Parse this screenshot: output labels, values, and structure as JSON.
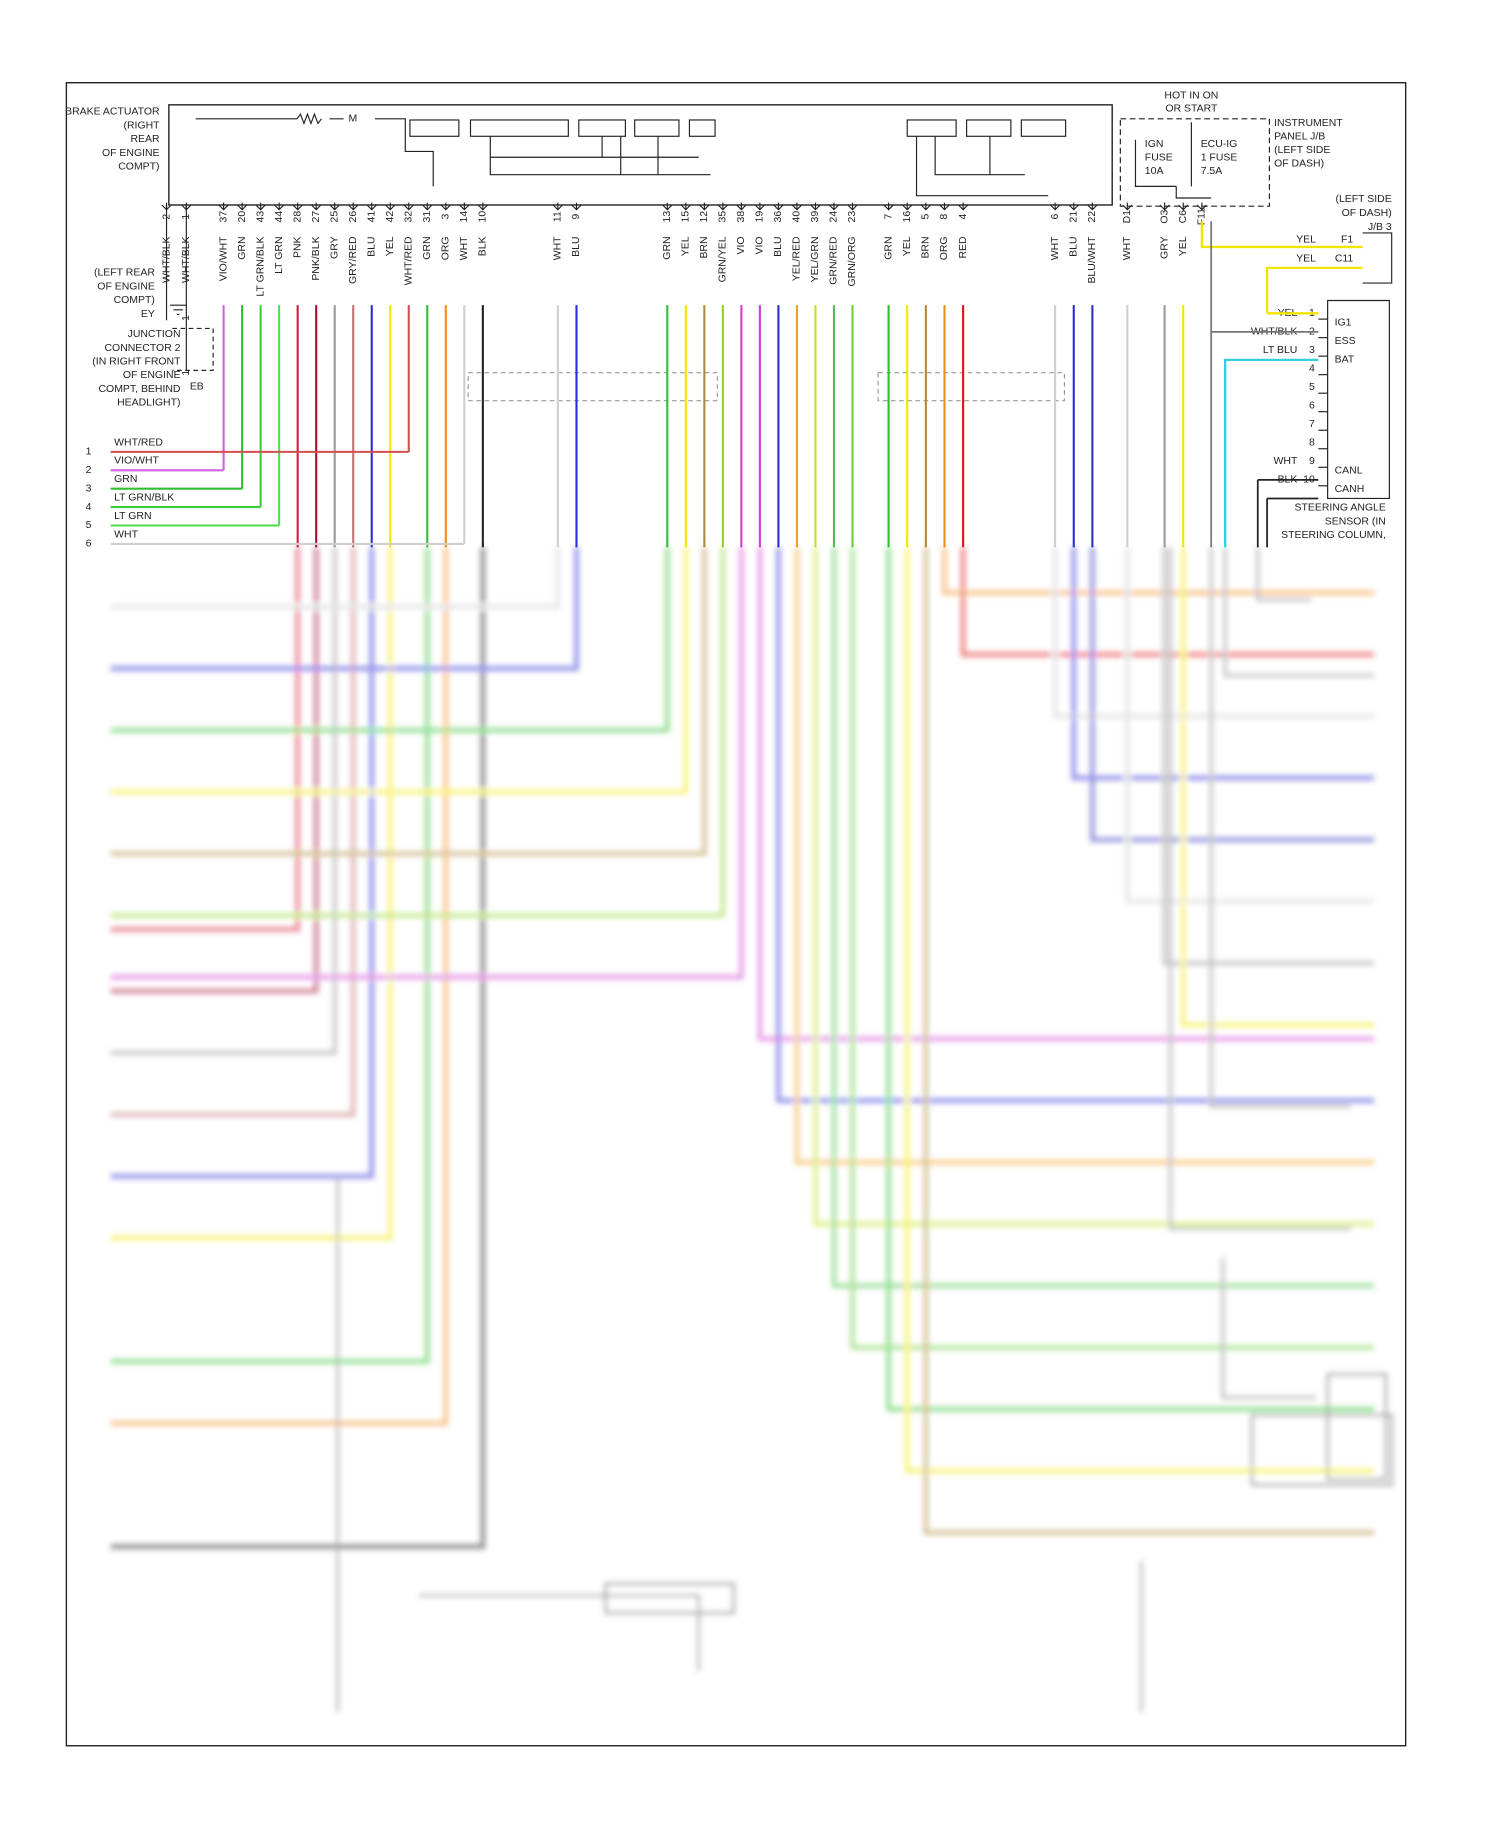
{
  "brake_actuator": {
    "label": [
      "BRAKE ACTUATOR",
      "(RIGHT",
      "REAR",
      "OF ENGINE",
      "COMPT)"
    ],
    "motor": "M"
  },
  "pins": [
    {
      "pin": "2",
      "wire": "WHT/BLK",
      "color": "#777777"
    },
    {
      "pin": "1",
      "wire": "WHT/BLK",
      "color": "#777777"
    },
    {
      "pin": "37",
      "wire": "VIO/WHT",
      "color": "#d060e0"
    },
    {
      "pin": "20",
      "wire": "GRN",
      "color": "#2fbf2f"
    },
    {
      "pin": "43",
      "wire": "LT GRN/BLK",
      "color": "#3acc3a"
    },
    {
      "pin": "44",
      "wire": "LT GRN",
      "color": "#4be04b"
    },
    {
      "pin": "28",
      "wire": "PNK",
      "color": "#d81b3c"
    },
    {
      "pin": "27",
      "wire": "PNK/BLK",
      "color": "#a01030"
    },
    {
      "pin": "25",
      "wire": "GRY",
      "color": "#999999"
    },
    {
      "pin": "26",
      "wire": "GRY/RED",
      "color": "#c07070"
    },
    {
      "pin": "41",
      "wire": "BLU",
      "color": "#2a2ad6"
    },
    {
      "pin": "42",
      "wire": "YEL",
      "color": "#f2e600"
    },
    {
      "pin": "32",
      "wire": "WHT/RED",
      "color": "#d05050"
    },
    {
      "pin": "31",
      "wire": "GRN",
      "color": "#2fbf2f"
    },
    {
      "pin": "3",
      "wire": "ORG",
      "color": "#f08a1a"
    },
    {
      "pin": "14",
      "wire": "WHT",
      "color": "#cfcfcf"
    },
    {
      "pin": "10",
      "wire": "BLK",
      "color": "#222222"
    },
    {
      "pin": "11",
      "wire": "WHT",
      "color": "#cfcfcf"
    },
    {
      "pin": "9",
      "wire": "BLU",
      "color": "#2a2ad6"
    },
    {
      "pin": "13",
      "wire": "GRN",
      "color": "#2fbf2f"
    },
    {
      "pin": "15",
      "wire": "YEL",
      "color": "#f2e600"
    },
    {
      "pin": "12",
      "wire": "BRN",
      "color": "#b08a3a"
    },
    {
      "pin": "35",
      "wire": "GRN/YEL",
      "color": "#8fd22a"
    },
    {
      "pin": "38",
      "wire": "VIO",
      "color": "#d040d0"
    },
    {
      "pin": "19",
      "wire": "VIO",
      "color": "#d040d0"
    },
    {
      "pin": "36",
      "wire": "BLU",
      "color": "#2a2ad6"
    },
    {
      "pin": "40",
      "wire": "YEL/RED",
      "color": "#f0a020"
    },
    {
      "pin": "39",
      "wire": "YEL/GRN",
      "color": "#c0e020"
    },
    {
      "pin": "24",
      "wire": "GRN/RED",
      "color": "#4cc24c"
    },
    {
      "pin": "23",
      "wire": "GRN/ORG",
      "color": "#6ccc3c"
    },
    {
      "pin": "7",
      "wire": "GRN",
      "color": "#2fbf2f"
    },
    {
      "pin": "16",
      "wire": "YEL",
      "color": "#f2e600"
    },
    {
      "pin": "5",
      "wire": "BRN",
      "color": "#b08a3a"
    },
    {
      "pin": "8",
      "wire": "ORG",
      "color": "#f08a1a"
    },
    {
      "pin": "4",
      "wire": "RED",
      "color": "#e01010"
    },
    {
      "pin": "6",
      "wire": "WHT",
      "color": "#cfcfcf"
    },
    {
      "pin": "21",
      "wire": "BLU",
      "color": "#2a2ad6"
    },
    {
      "pin": "22",
      "wire": "BLU/WHT",
      "color": "#3030c0"
    },
    {
      "pin": "D1",
      "wire": "WHT",
      "color": "#cfcfcf"
    },
    {
      "pin": "O3",
      "wire": "GRY",
      "color": "#999999"
    },
    {
      "pin": "C6",
      "wire": "YEL",
      "color": "#f2e600"
    },
    {
      "pin": "F11",
      "color": "#f2e600"
    }
  ],
  "ground_ey": {
    "label": [
      "(LEFT REAR",
      "OF ENGINE",
      "COMPT)",
      "EY"
    ]
  },
  "junction": {
    "label": [
      "JUNCTION",
      "CONNECTOR 2",
      "(IN RIGHT FRONT",
      "OF ENGINE",
      "COMPT, BEHIND",
      "HEADLIGHT)"
    ],
    "id": "EB",
    "pins": [
      "1",
      "1"
    ]
  },
  "harness": [
    {
      "pin": "1",
      "wire": "WHT/RED",
      "color": "#d05050"
    },
    {
      "pin": "2",
      "wire": "VIO/WHT",
      "color": "#d060e0"
    },
    {
      "pin": "3",
      "wire": "GRN",
      "color": "#2fbf2f"
    },
    {
      "pin": "4",
      "wire": "LT GRN/BLK",
      "color": "#3acc3a"
    },
    {
      "pin": "5",
      "wire": "LT GRN",
      "color": "#4be04b"
    },
    {
      "pin": "6",
      "wire": "WHT",
      "color": "#cfcfcf"
    }
  ],
  "power": {
    "hot": [
      "HOT IN ON",
      "OR START"
    ],
    "fuse1": [
      "IGN",
      "FUSE",
      "10A"
    ],
    "fuse2": [
      "ECU-IG",
      "1 FUSE",
      "7.5A"
    ],
    "jb": [
      "INSTRUMENT",
      "PANEL J/B",
      "(LEFT SIDE",
      "OF DASH)"
    ]
  },
  "jb3": {
    "label": [
      "(LEFT SIDE",
      "OF DASH)",
      "J/B 3"
    ],
    "pins": [
      {
        "pin": "F1",
        "wire": "YEL"
      },
      {
        "pin": "C11",
        "wire": "YEL"
      }
    ]
  },
  "steering": {
    "label": [
      "STEERING ANGLE",
      "SENSOR (IN",
      "STEERING COLUMN,"
    ],
    "pins": [
      {
        "pin": "1",
        "wire": "YEL",
        "name": "IG1",
        "color": "#f2e600"
      },
      {
        "pin": "2",
        "wire": "WHT/BLK",
        "name": "ESS",
        "color": "#777777"
      },
      {
        "pin": "3",
        "wire": "LT BLU",
        "name": "BAT",
        "color": "#30d0e0"
      },
      {
        "pin": "4"
      },
      {
        "pin": "5"
      },
      {
        "pin": "6"
      },
      {
        "pin": "7"
      },
      {
        "pin": "8"
      },
      {
        "pin": "9",
        "wire": "WHT",
        "name": "CANL",
        "color": "#cfcfcf"
      },
      {
        "pin": "10",
        "wire": "BLK",
        "name": "CANH",
        "color": "#222222"
      }
    ]
  }
}
